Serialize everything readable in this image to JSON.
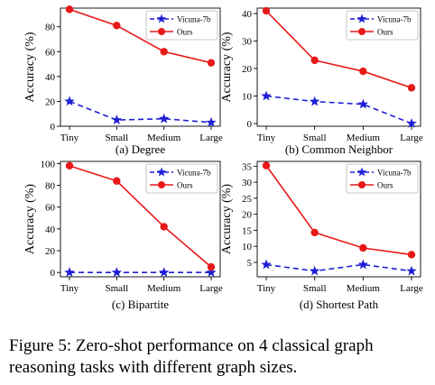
{
  "figure": {
    "caption": "Figure 5: Zero-shot performance on 4 classical graph reasoning tasks with different graph sizes."
  },
  "colors": {
    "vicuna": "#1f1fd6",
    "ours": "#e81919"
  },
  "chart_data": [
    {
      "type": "line",
      "subtitle": "(a) Degree",
      "ylabel": "Accuracy (%)",
      "categories": [
        "Tiny",
        "Small",
        "Medium",
        "Large"
      ],
      "ylim": [
        0,
        95
      ],
      "yticks": [
        0,
        20,
        40,
        60,
        80
      ],
      "series": [
        {
          "name": "Vicuna-7b",
          "values": [
            20,
            5,
            6,
            3
          ]
        },
        {
          "name": "Ours",
          "values": [
            94,
            81,
            60,
            51
          ]
        }
      ],
      "legend": "top-right",
      "grid": false
    },
    {
      "type": "line",
      "subtitle": "(b) Common Neighbor",
      "ylabel": "Accuracy (%)",
      "categories": [
        "Tiny",
        "Small",
        "Medium",
        "Large"
      ],
      "ylim": [
        -1,
        42
      ],
      "yticks": [
        0,
        10,
        20,
        30,
        40
      ],
      "series": [
        {
          "name": "Vicuna-7b",
          "values": [
            10,
            8,
            7,
            0
          ]
        },
        {
          "name": "Ours",
          "values": [
            41,
            23,
            19,
            13
          ]
        }
      ],
      "legend": "top-right",
      "grid": false
    },
    {
      "type": "line",
      "subtitle": "(c) Bipartite",
      "ylabel": "Accuracy (%)",
      "categories": [
        "Tiny",
        "Small",
        "Medium",
        "Large"
      ],
      "ylim": [
        -4,
        102
      ],
      "yticks": [
        0,
        20,
        40,
        60,
        80,
        100
      ],
      "series": [
        {
          "name": "Vicuna-7b",
          "values": [
            0,
            0,
            0,
            0
          ]
        },
        {
          "name": "Ours",
          "values": [
            98,
            84,
            42,
            5
          ]
        }
      ],
      "legend": "top-right",
      "grid": false
    },
    {
      "type": "line",
      "subtitle": "(d) Shortest Path",
      "ylabel": "Accuracy (%)",
      "categories": [
        "Tiny",
        "Small",
        "Medium",
        "Large"
      ],
      "ylim": [
        0.5,
        36.5
      ],
      "yticks": [
        5,
        10,
        15,
        20,
        25,
        30,
        35
      ],
      "series": [
        {
          "name": "Vicuna-7b",
          "values": [
            4.3,
            2.3,
            4.3,
            2.3
          ]
        },
        {
          "name": "Ours",
          "values": [
            35.2,
            14.3,
            9.5,
            7.4
          ]
        }
      ],
      "legend": "top-right",
      "grid": false
    }
  ]
}
